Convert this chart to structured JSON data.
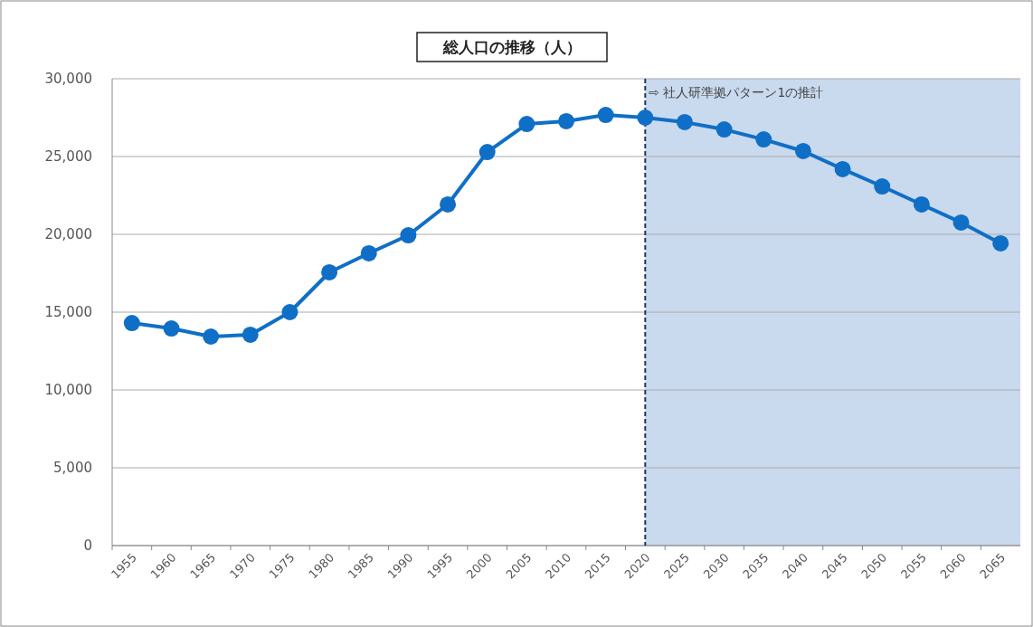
{
  "chart_data": {
    "type": "line",
    "title": "総人口の推移（人）",
    "categories": [
      "1955",
      "1960",
      "1965",
      "1970",
      "1975",
      "1980",
      "1985",
      "1990",
      "1995",
      "2000",
      "2005",
      "2010",
      "2015",
      "2020",
      "2025",
      "2030",
      "2035",
      "2040",
      "2045",
      "2050",
      "2055",
      "2060",
      "2065"
    ],
    "series": [
      {
        "color": "#0f6fc6",
        "values": [
          14300,
          13950,
          13430,
          13550,
          15000,
          17560,
          18780,
          19940,
          21920,
          25290,
          27090,
          27270,
          27670,
          27500,
          27210,
          26740,
          26100,
          25350,
          24190,
          23080,
          21920,
          20760,
          19420
        ]
      }
    ],
    "ylim": [
      0,
      30000
    ],
    "yticks": [
      {
        "value": 0,
        "label": "0"
      },
      {
        "value": 5000,
        "label": "5,000"
      },
      {
        "value": 10000,
        "label": "10,000"
      },
      {
        "value": 15000,
        "label": "15,000"
      },
      {
        "value": 20000,
        "label": "20,000"
      },
      {
        "value": 25000,
        "label": "25,000"
      },
      {
        "value": 30000,
        "label": "30,000"
      }
    ],
    "grid": "y",
    "marker": "circle",
    "line_style": "solid",
    "ref_lines": [
      {
        "axis": "x",
        "value": "2020",
        "label": "⇨ 社人研準拠パターン1の推計",
        "color": "#1f3864",
        "line_style": "dashed"
      }
    ],
    "bands": [
      {
        "axis": "x",
        "from": "2020",
        "to": "2065",
        "color": "#c9d9ee"
      }
    ]
  }
}
